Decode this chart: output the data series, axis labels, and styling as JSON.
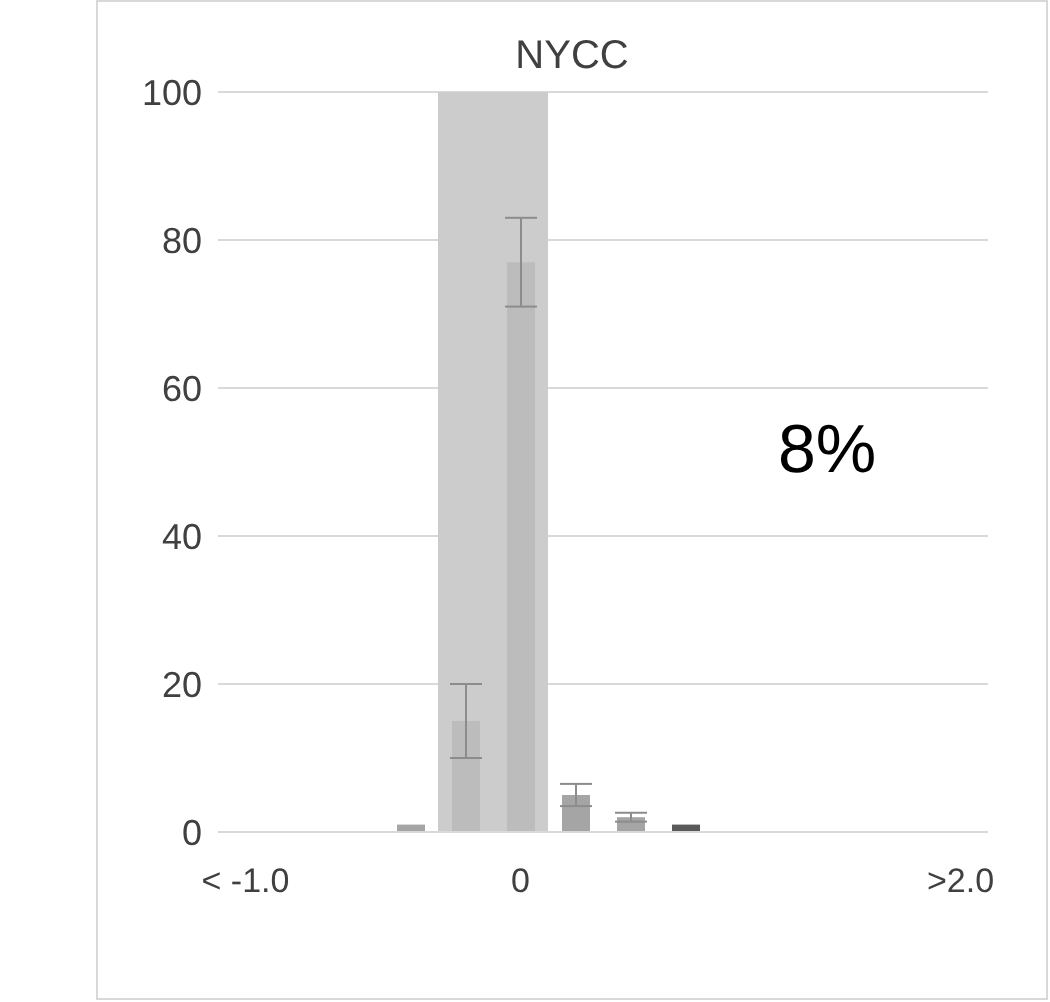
{
  "chart_data": {
    "type": "bar",
    "title": "NYCC",
    "categories": [
      "< -1.0",
      null,
      null,
      null,
      null,
      "0",
      null,
      null,
      null,
      null,
      null,
      null,
      null,
      ">2.0"
    ],
    "values": [
      0,
      0,
      0,
      1,
      15,
      77,
      5,
      2,
      1,
      0,
      0,
      0,
      0,
      0
    ],
    "errors": [
      null,
      null,
      null,
      null,
      5,
      6,
      1.5,
      0.6,
      null,
      null,
      null,
      null,
      null,
      null
    ],
    "colors": [
      "#a5a5a5",
      "#a5a5a5",
      "#a5a5a5",
      "#a5a5a5",
      "#bcbcbc",
      "#bcbcbc",
      "#a5a5a5",
      "#a5a5a5",
      "#595959",
      "#a5a5a5",
      "#a5a5a5",
      "#a5a5a5",
      "#a5a5a5",
      "#a5a5a5"
    ],
    "ylim": [
      0,
      100
    ],
    "yticks": [
      0,
      20,
      40,
      60,
      80,
      100
    ],
    "grid": "y",
    "annotations": [
      "8%"
    ]
  }
}
